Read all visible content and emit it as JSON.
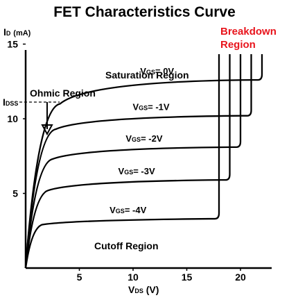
{
  "chart_data": {
    "type": "line",
    "title": "FET Characteristics Curve",
    "ylabel": {
      "main": "I",
      "sub": "D",
      "unit": "(mA)"
    },
    "xlabel": {
      "main": "V",
      "sub": "DS",
      "unit": "(V)"
    },
    "xlim": [
      0,
      22
    ],
    "ylim": [
      0,
      16
    ],
    "x_ticks": [
      5,
      10,
      15,
      20
    ],
    "y_ticks": [
      5,
      10,
      15
    ],
    "idss_label": {
      "main": "I",
      "sub": "DSS"
    },
    "idss_value": 12,
    "regions": {
      "ohmic": "Ohmic Region",
      "saturation": "Saturation Region",
      "cutoff": "Cutoff Region",
      "breakdown": "Breakdown Region"
    },
    "series": [
      {
        "name": "VGS= 0V",
        "vgs_prefix": "V",
        "vgs_sub": "GS",
        "vgs_value": "= 0V",
        "knee_x": 3.2,
        "knee_y": 11.0,
        "end_y": 12.6,
        "breakdown_x": 22.0
      },
      {
        "name": "VGS= -1V",
        "vgs_prefix": "V",
        "vgs_sub": "GS",
        "vgs_value": "= -1V",
        "knee_x": 2.8,
        "knee_y": 9.3,
        "end_y": 10.2,
        "breakdown_x": 21.0
      },
      {
        "name": "VGS= -2V",
        "vgs_prefix": "V",
        "vgs_sub": "GS",
        "vgs_value": "= -2V",
        "knee_x": 2.5,
        "knee_y": 7.3,
        "end_y": 8.1,
        "breakdown_x": 20.0
      },
      {
        "name": "VGS= -3V",
        "vgs_prefix": "V",
        "vgs_sub": "GS",
        "vgs_value": "= -3V",
        "knee_x": 2.1,
        "knee_y": 5.2,
        "end_y": 5.9,
        "breakdown_x": 19.0
      },
      {
        "name": "VGS= -4V",
        "vgs_prefix": "V",
        "vgs_sub": "GS",
        "vgs_value": "= -4V",
        "knee_x": 1.5,
        "knee_y": 2.9,
        "end_y": 3.3,
        "breakdown_x": 18.0
      }
    ],
    "colors": {
      "axis": "#000000",
      "curve": "#000000",
      "breakdown_text": "#e8141c"
    },
    "grid": false,
    "legend": "none"
  }
}
